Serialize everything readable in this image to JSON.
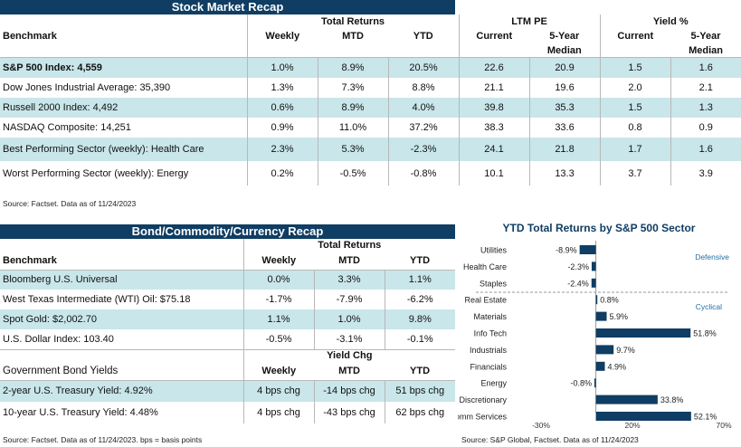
{
  "stock": {
    "title": "Stock Market Recap",
    "benchmark_label": "Benchmark",
    "total_returns_label": "Total Returns",
    "ltm_pe_label": "LTM PE",
    "yield_label": "Yield %",
    "col_weekly": "Weekly",
    "col_mtd": "MTD",
    "col_ytd": "YTD",
    "col_current": "Current",
    "col_5yr": "5-Year",
    "col_median": "Median",
    "col_current2": "Current",
    "col_5yr2": "5-Year",
    "col_median2": "Median",
    "rows": [
      {
        "name": "S&P 500 Index: 4,559",
        "weekly": "1.0%",
        "mtd": "8.9%",
        "ytd": "20.5%",
        "pe_cur": "22.6",
        "pe_med": "20.9",
        "y_cur": "1.5",
        "y_med": "1.6"
      },
      {
        "name": "Dow Jones Industrial Average: 35,390",
        "weekly": "1.3%",
        "mtd": "7.3%",
        "ytd": "8.8%",
        "pe_cur": "21.1",
        "pe_med": "19.6",
        "y_cur": "2.0",
        "y_med": "2.1"
      },
      {
        "name": "Russell 2000 Index: 4,492",
        "weekly": "0.6%",
        "mtd": "8.9%",
        "ytd": "4.0%",
        "pe_cur": "39.8",
        "pe_med": "35.3",
        "y_cur": "1.5",
        "y_med": "1.3"
      },
      {
        "name": "NASDAQ Composite: 14,251",
        "weekly": "0.9%",
        "mtd": "11.0%",
        "ytd": "37.2%",
        "pe_cur": "38.3",
        "pe_med": "33.6",
        "y_cur": "0.8",
        "y_med": "0.9"
      },
      {
        "name": "Best Performing Sector (weekly): Health Care",
        "weekly": "2.3%",
        "mtd": "5.3%",
        "ytd": "-2.3%",
        "pe_cur": "24.1",
        "pe_med": "21.8",
        "y_cur": "1.7",
        "y_med": "1.6"
      },
      {
        "name": "Worst Performing Sector (weekly): Energy",
        "weekly": "0.2%",
        "mtd": "-0.5%",
        "ytd": "-0.8%",
        "pe_cur": "10.1",
        "pe_med": "13.3",
        "y_cur": "3.7",
        "y_med": "3.9"
      }
    ],
    "source": "Source: Factset. Data as of 11/24/2023"
  },
  "bond": {
    "title": "Bond/Commodity/Currency Recap",
    "benchmark_label": "Benchmark",
    "total_returns_label": "Total Returns",
    "col_weekly": "Weekly",
    "col_mtd": "MTD",
    "col_ytd": "YTD",
    "rows": [
      {
        "name": "Bloomberg U.S. Universal",
        "weekly": "0.0%",
        "mtd": "3.3%",
        "ytd": "1.1%"
      },
      {
        "name": "West Texas Intermediate (WTI) Oil: $75.18",
        "weekly": "-1.7%",
        "mtd": "-7.9%",
        "ytd": "-6.2%"
      },
      {
        "name": "Spot Gold: $2,002.70",
        "weekly": "1.1%",
        "mtd": "1.0%",
        "ytd": "9.8%"
      },
      {
        "name": "U.S. Dollar Index: 103.40",
        "weekly": "-0.5%",
        "mtd": "-3.1%",
        "ytd": "-0.1%"
      }
    ],
    "gov_label": "Government Bond Yields",
    "yield_chg_label": "Yield Chg",
    "gov_col_weekly": "Weekly",
    "gov_col_mtd": "MTD",
    "gov_col_ytd": "YTD",
    "gov_rows": [
      {
        "name": "2-year U.S. Treasury Yield: 4.92%",
        "weekly": "4 bps chg",
        "mtd": "-14 bps chg",
        "ytd": "51 bps chg"
      },
      {
        "name": "10-year U.S. Treasury Yield: 4.48%",
        "weekly": "4 bps chg",
        "mtd": "-43 bps chg",
        "ytd": "62 bps chg"
      }
    ],
    "source": "Source: Factset. Data as of 11/24/2023. bps = basis points"
  },
  "chart_data": {
    "type": "bar",
    "orientation": "horizontal",
    "title": "YTD Total Returns by S&P 500 Sector",
    "categories": [
      "Utilities",
      "Health Care",
      "Staples",
      "Real Estate",
      "Materials",
      "Info Tech",
      "Industrials",
      "Financials",
      "Energy",
      "Discretionary",
      "Comm Services"
    ],
    "values": [
      -8.9,
      -2.3,
      -2.4,
      0.8,
      5.9,
      51.8,
      9.7,
      4.9,
      -0.8,
      33.8,
      52.1
    ],
    "value_labels": [
      "-8.9%",
      "-2.3%",
      "-2.4%",
      "0.8%",
      "5.9%",
      "51.8%",
      "9.7%",
      "4.9%",
      "-0.8%",
      "33.8%",
      "52.1%"
    ],
    "groups": [
      {
        "name": "Defensive",
        "count": 3
      },
      {
        "name": "Cyclical",
        "count": 8
      }
    ],
    "xlim": [
      -30,
      70
    ],
    "xticks": [
      "-30%",
      "20%",
      "70%"
    ],
    "bar_color": "#0f3d63",
    "group_label_color": "#1f6fa8",
    "source": "Source: S&P Global, Factset. Data as of 11/24/2023"
  }
}
